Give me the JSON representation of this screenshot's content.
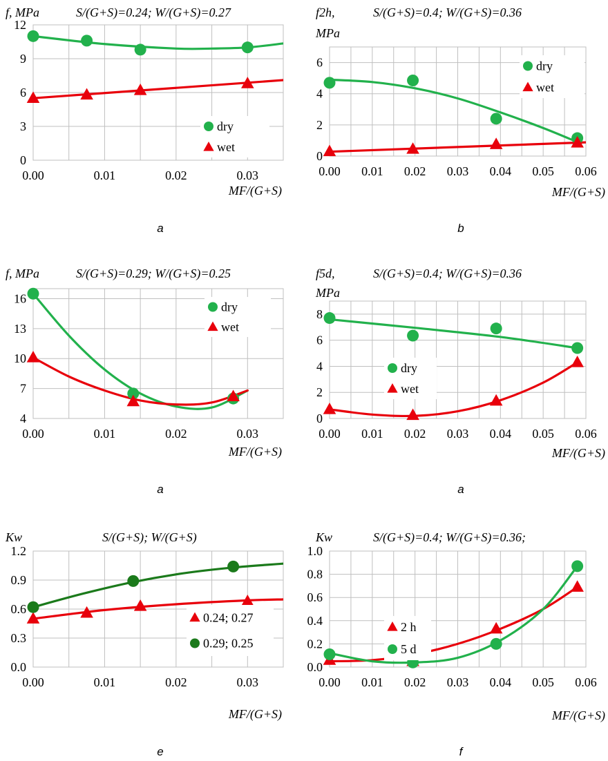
{
  "chart_data": [
    {
      "type": "scatter",
      "panel_letter": "a",
      "ylabel": "f, MPa",
      "title": "S/(G+S)=0.24; W/(G+S)=0.27",
      "xlabel": "MF/(G+S)",
      "xlim": [
        0,
        0.035
      ],
      "ylim": [
        0,
        12
      ],
      "xticks": [
        0,
        0.01,
        0.02,
        0.03
      ],
      "xtick_labels": [
        "0.00",
        "0.01",
        "0.02",
        "0.03"
      ],
      "yticks": [
        0,
        3,
        6,
        9,
        12
      ],
      "ytick_labels": [
        "0",
        "3",
        "6",
        "9",
        "12"
      ],
      "grid": true,
      "legend": "center-right",
      "series": [
        {
          "name": "dry",
          "marker": "circle",
          "color": "#22b14c",
          "x": [
            0,
            0.0075,
            0.015,
            0.03
          ],
          "y": [
            11.0,
            10.6,
            9.8,
            10.0
          ],
          "trend": [
            [
              0,
              11.0
            ],
            [
              0.01,
              10.3
            ],
            [
              0.02,
              9.9
            ],
            [
              0.025,
              9.9
            ],
            [
              0.03,
              10.0
            ],
            [
              0.035,
              10.35
            ]
          ]
        },
        {
          "name": "wet",
          "marker": "triangle",
          "color": "#e8000b",
          "x": [
            0,
            0.0075,
            0.015,
            0.03
          ],
          "y": [
            5.5,
            5.8,
            6.2,
            6.8
          ],
          "trend": [
            [
              0,
              5.5
            ],
            [
              0.035,
              7.1
            ]
          ]
        }
      ]
    },
    {
      "type": "scatter",
      "panel_letter": "b",
      "ylabel": "f2h,",
      "ylabel2": "MPa",
      "title": "S/(G+S)=0.4; W/(G+S)=0.36",
      "xlabel": "MF/(G+S)",
      "xlim": [
        0,
        0.06
      ],
      "ylim": [
        0,
        7
      ],
      "xticks": [
        0,
        0.01,
        0.02,
        0.03,
        0.04,
        0.05,
        0.06
      ],
      "xtick_labels": [
        "0.00",
        "0.01",
        "0.02",
        "0.03",
        "0.04",
        "0.05",
        "0.06"
      ],
      "yticks": [
        0,
        2,
        4,
        6
      ],
      "ytick_labels": [
        "0",
        "2",
        "4",
        "6"
      ],
      "grid": true,
      "legend": "top-right",
      "series": [
        {
          "name": "dry",
          "marker": "circle",
          "color": "#22b14c",
          "x": [
            0,
            0.0195,
            0.039,
            0.058
          ],
          "y": [
            4.7,
            4.85,
            2.4,
            1.15
          ],
          "trend": [
            [
              0,
              4.9
            ],
            [
              0.01,
              4.75
            ],
            [
              0.02,
              4.35
            ],
            [
              0.03,
              3.7
            ],
            [
              0.04,
              2.8
            ],
            [
              0.05,
              1.8
            ],
            [
              0.058,
              0.9
            ]
          ]
        },
        {
          "name": "wet",
          "marker": "triangle",
          "color": "#e8000b",
          "x": [
            0,
            0.0195,
            0.039,
            0.058
          ],
          "y": [
            0.3,
            0.45,
            0.75,
            0.85
          ],
          "trend": [
            [
              0,
              0.28
            ],
            [
              0.06,
              0.88
            ]
          ]
        }
      ]
    },
    {
      "type": "scatter",
      "panel_letter": "a",
      "ylabel": "f, MPa",
      "title": "S/(G+S)=0.29; W/(G+S)=0.25",
      "xlabel": "MF/(G+S)",
      "xlim": [
        0,
        0.035
      ],
      "ylim": [
        4,
        17
      ],
      "xticks": [
        0,
        0.01,
        0.02,
        0.03
      ],
      "xtick_labels": [
        "0.00",
        "0.01",
        "0.02",
        "0.03"
      ],
      "yticks": [
        4,
        7,
        10,
        13,
        16
      ],
      "ytick_labels": [
        "4",
        "7",
        "10",
        "13",
        "16"
      ],
      "grid": true,
      "legend": "top-right",
      "series": [
        {
          "name": "dry",
          "marker": "circle",
          "color": "#22b14c",
          "x": [
            0,
            0.014,
            0.028
          ],
          "y": [
            16.5,
            6.5,
            6.0
          ],
          "trend": [
            [
              0,
              16.5
            ],
            [
              0.005,
              12.3
            ],
            [
              0.01,
              8.9
            ],
            [
              0.015,
              6.5
            ],
            [
              0.02,
              5.2
            ],
            [
              0.025,
              5.1
            ],
            [
              0.03,
              6.8
            ]
          ]
        },
        {
          "name": "wet",
          "marker": "triangle",
          "color": "#e8000b",
          "x": [
            0,
            0.014,
            0.028
          ],
          "y": [
            10.1,
            5.7,
            6.2
          ],
          "trend": [
            [
              0,
              10.1
            ],
            [
              0.005,
              8.2
            ],
            [
              0.01,
              6.8
            ],
            [
              0.015,
              5.8
            ],
            [
              0.02,
              5.4
            ],
            [
              0.025,
              5.6
            ],
            [
              0.03,
              6.8
            ]
          ]
        }
      ]
    },
    {
      "type": "scatter",
      "panel_letter": "a",
      "ylabel": "f5d,",
      "ylabel2": "MPa",
      "title": "S/(G+S)=0.4; W/(G+S)=0.36",
      "xlabel": "MF/(G+S)",
      "xlim": [
        0,
        0.06
      ],
      "ylim": [
        0,
        9
      ],
      "xticks": [
        0,
        0.01,
        0.02,
        0.03,
        0.04,
        0.05,
        0.06
      ],
      "xtick_labels": [
        "0.00",
        "0.01",
        "0.02",
        "0.03",
        "0.04",
        "0.05",
        "0.06"
      ],
      "yticks": [
        0,
        2,
        4,
        6,
        8
      ],
      "ytick_labels": [
        "0",
        "2",
        "4",
        "6",
        "8"
      ],
      "grid": true,
      "legend": "center-left",
      "series": [
        {
          "name": "dry",
          "marker": "circle",
          "color": "#22b14c",
          "x": [
            0,
            0.0195,
            0.039,
            0.058
          ],
          "y": [
            7.7,
            6.35,
            6.9,
            5.4
          ],
          "trend": [
            [
              0,
              7.6
            ],
            [
              0.02,
              6.95
            ],
            [
              0.04,
              6.25
            ],
            [
              0.058,
              5.4
            ]
          ]
        },
        {
          "name": "wet",
          "marker": "triangle",
          "color": "#e8000b",
          "x": [
            0,
            0.0195,
            0.039,
            0.058
          ],
          "y": [
            0.7,
            0.25,
            1.35,
            4.3
          ],
          "trend": [
            [
              0,
              0.7
            ],
            [
              0.01,
              0.3
            ],
            [
              0.02,
              0.2
            ],
            [
              0.03,
              0.55
            ],
            [
              0.04,
              1.4
            ],
            [
              0.05,
              2.75
            ],
            [
              0.058,
              4.3
            ]
          ]
        }
      ]
    },
    {
      "type": "scatter",
      "panel_letter": "e",
      "ylabel": "Kw",
      "title": "S/(G+S); W/(G+S)",
      "xlabel": "MF/(G+S)",
      "xlim": [
        0,
        0.035
      ],
      "ylim": [
        0,
        1.2
      ],
      "xticks": [
        0,
        0.01,
        0.02,
        0.03
      ],
      "xtick_labels": [
        "0.00",
        "0.01",
        "0.02",
        "0.03"
      ],
      "yticks": [
        0,
        0.3,
        0.6,
        0.9,
        1.2
      ],
      "ytick_labels": [
        "0.0",
        "0.3",
        "0.6",
        "0.9",
        "1.2"
      ],
      "grid": true,
      "legend": "bottom-right",
      "series": [
        {
          "name": "0.24; 0.27",
          "marker": "triangle",
          "color": "#e8000b",
          "x": [
            0,
            0.0075,
            0.015,
            0.03
          ],
          "y": [
            0.5,
            0.56,
            0.63,
            0.68
          ],
          "trend": [
            [
              0,
              0.5
            ],
            [
              0.01,
              0.59
            ],
            [
              0.02,
              0.65
            ],
            [
              0.03,
              0.69
            ],
            [
              0.035,
              0.7
            ]
          ]
        },
        {
          "name": "0.29; 0.25",
          "marker": "circle",
          "color": "#1b7a1b",
          "x": [
            0,
            0.014,
            0.028
          ],
          "y": [
            0.62,
            0.89,
            1.04
          ],
          "trend": [
            [
              0,
              0.62
            ],
            [
              0.007,
              0.76
            ],
            [
              0.014,
              0.88
            ],
            [
              0.021,
              0.97
            ],
            [
              0.028,
              1.03
            ],
            [
              0.035,
              1.07
            ]
          ]
        }
      ]
    },
    {
      "type": "scatter",
      "panel_letter": "f",
      "ylabel": "Kw",
      "title": "S/(G+S)=0.4; W/(G+S)=0.36;",
      "xlabel": "MF/(G+S)",
      "xlim": [
        0,
        0.06
      ],
      "ylim": [
        0,
        1.0
      ],
      "xticks": [
        0,
        0.01,
        0.02,
        0.03,
        0.04,
        0.05,
        0.06
      ],
      "xtick_labels": [
        "0.00",
        "0.01",
        "0.02",
        "0.03",
        "0.04",
        "0.05",
        "0.06"
      ],
      "yticks": [
        0,
        0.2,
        0.4,
        0.6,
        0.8,
        1.0
      ],
      "ytick_labels": [
        "0.0",
        "0.2",
        "0.4",
        "0.6",
        "0.8",
        "1.0"
      ],
      "grid": true,
      "legend": "center-left",
      "series": [
        {
          "name": "2 h",
          "marker": "triangle",
          "color": "#e8000b",
          "x": [
            0,
            0.0195,
            0.039,
            0.058
          ],
          "y": [
            0.06,
            0.05,
            0.33,
            0.69
          ],
          "trend": [
            [
              0,
              0.05
            ],
            [
              0.01,
              0.06
            ],
            [
              0.02,
              0.11
            ],
            [
              0.03,
              0.2
            ],
            [
              0.04,
              0.33
            ],
            [
              0.05,
              0.5
            ],
            [
              0.058,
              0.69
            ]
          ]
        },
        {
          "name": "5 d",
          "marker": "circle",
          "color": "#22b14c",
          "x": [
            0,
            0.0195,
            0.039,
            0.058
          ],
          "y": [
            0.11,
            0.04,
            0.2,
            0.87
          ],
          "trend": [
            [
              0,
              0.12
            ],
            [
              0.01,
              0.05
            ],
            [
              0.02,
              0.04
            ],
            [
              0.03,
              0.08
            ],
            [
              0.04,
              0.23
            ],
            [
              0.05,
              0.5
            ],
            [
              0.058,
              0.87
            ]
          ]
        }
      ]
    }
  ]
}
